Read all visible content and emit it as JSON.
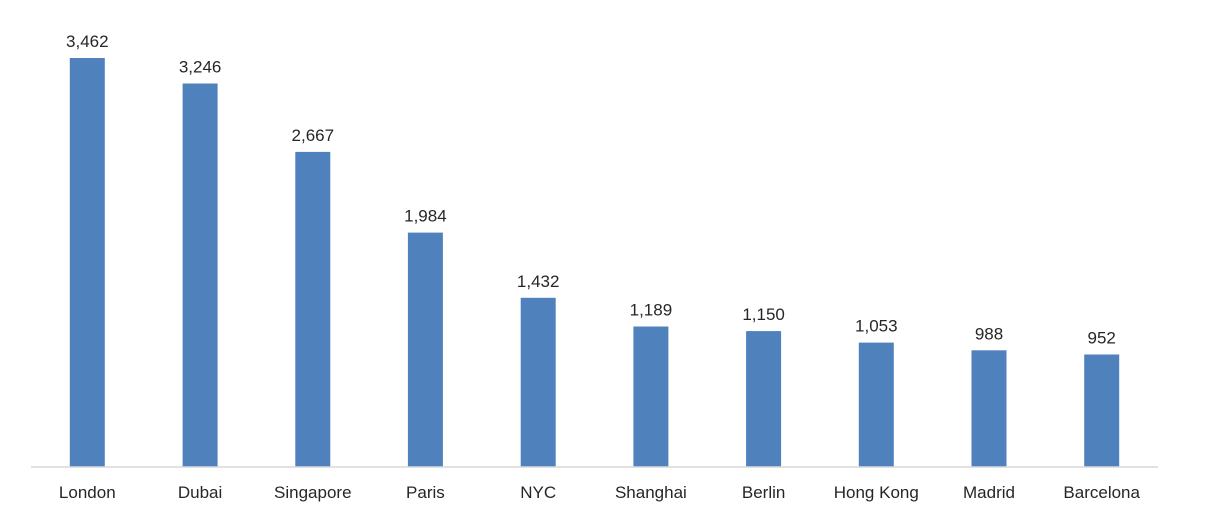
{
  "chart_data": {
    "type": "bar",
    "categories": [
      "London",
      "Dubai",
      "Singapore",
      "Paris",
      "NYC",
      "Shanghai",
      "Berlin",
      "Hong Kong",
      "Madrid",
      "Barcelona"
    ],
    "values": [
      3462,
      3246,
      2667,
      1984,
      1432,
      1189,
      1150,
      1053,
      988,
      952
    ],
    "value_labels": [
      "3,462",
      "3,246",
      "2,667",
      "1,984",
      "1,432",
      "1,189",
      "1,150",
      "1,053",
      "988",
      "952"
    ],
    "title": "",
    "xlabel": "",
    "ylabel": "",
    "ylim": [
      0,
      3462
    ],
    "grid": false,
    "legend": "none",
    "bar_color": "#4f81bd",
    "axis_color": "#d9d9d9",
    "text_color": "#262626"
  }
}
